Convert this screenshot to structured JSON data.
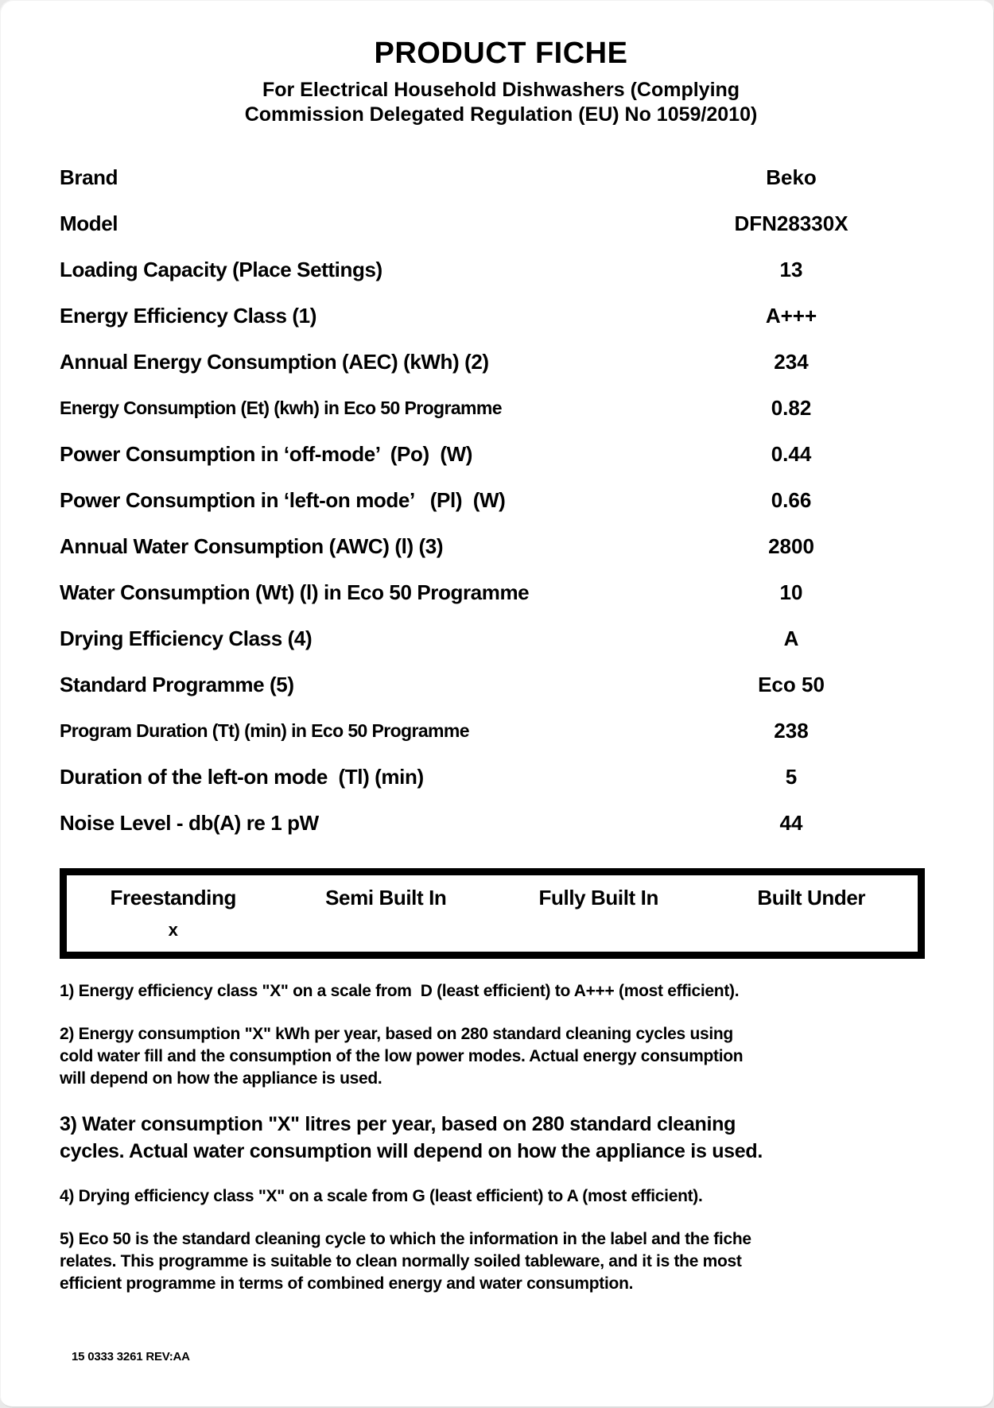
{
  "header": {
    "title": "PRODUCT FICHE",
    "subtitle_lines": [
      "For Electrical Household Dishwashers (Complying",
      "Commission Delegated Regulation (EU) No 1059/2010)"
    ]
  },
  "spec_table": {
    "rows": [
      {
        "label": "Brand",
        "value": "Beko",
        "condensed": false
      },
      {
        "label": "Model",
        "value": "DFN28330X",
        "condensed": false
      },
      {
        "label": "Loading Capacity (Place Settings)",
        "value": "13",
        "condensed": false
      },
      {
        "label": "Energy Efficiency Class (1)",
        "value": "A+++",
        "condensed": false
      },
      {
        "label": "Annual Energy Consumption (AEC) (kWh) (2)",
        "value": "234",
        "condensed": false
      },
      {
        "label": "Energy Consumption (Et) (kwh) in Eco 50 Programme",
        "value": "0.82",
        "condensed": true
      },
      {
        "label": "Power Consumption in ‘off-mode’  (Po)  (W)",
        "value": "0.44",
        "condensed": false
      },
      {
        "label": "Power Consumption in ‘left-on mode’   (Pl)  (W)",
        "value": "0.66",
        "condensed": false
      },
      {
        "label": "Annual Water Consumption (AWC) (l) (3)",
        "value": "2800",
        "condensed": false
      },
      {
        "label": "Water Consumption (Wt) (l) in Eco 50 Programme",
        "value": "10",
        "condensed": false
      },
      {
        "label": "Drying Efficiency Class (4)",
        "value": "A",
        "condensed": false
      },
      {
        "label": "Standard Programme (5)",
        "value": "Eco 50",
        "condensed": false
      },
      {
        "label": "Program Duration (Tt) (min) in Eco 50 Programme",
        "value": "238",
        "condensed": true
      },
      {
        "label": "Duration of the left-on mode  (Tl) (min)",
        "value": "5",
        "condensed": false
      },
      {
        "label": "Noise Level - db(A) re 1 pW",
        "value": "44",
        "condensed": false
      }
    ]
  },
  "installation_box": {
    "columns": [
      {
        "label": "Freestanding",
        "mark": "x"
      },
      {
        "label": "Semi Built In",
        "mark": ""
      },
      {
        "label": "Fully Built In",
        "mark": ""
      },
      {
        "label": "Built Under",
        "mark": ""
      }
    ]
  },
  "footnotes": [
    {
      "large": false,
      "lines": [
        "1) Energy efficiency class \"X\" on a scale from  D (least efficient) to A+++ (most efficient)."
      ]
    },
    {
      "large": false,
      "lines": [
        "2) Energy consumption \"X\" kWh per year, based on 280 standard cleaning cycles using",
        "cold water fill and the consumption of the low power modes. Actual energy consumption",
        "will depend on how the appliance is used."
      ]
    },
    {
      "large": true,
      "lines": [
        "3) Water consumption \"X\" litres per year, based on 280 standard cleaning",
        "cycles. Actual water consumption will depend on how the appliance is used."
      ]
    },
    {
      "large": false,
      "lines": [
        "4) Drying efficiency class \"X\" on a scale from G (least efficient) to A (most efficient)."
      ]
    },
    {
      "large": false,
      "lines": [
        "5) Eco 50 is the standard cleaning cycle to which the information in the label and the fiche",
        "relates. This programme is suitable to clean normally soiled tableware, and it is the most",
        "efficient programme in terms of combined energy and water consumption."
      ]
    }
  ],
  "footer": {
    "document_code": "15 0333 3261  REV:AA"
  },
  "colors": {
    "text": "#000000",
    "page_background": "#ffffff",
    "canvas_background": "#e9e9e9",
    "box_border": "#000000"
  }
}
